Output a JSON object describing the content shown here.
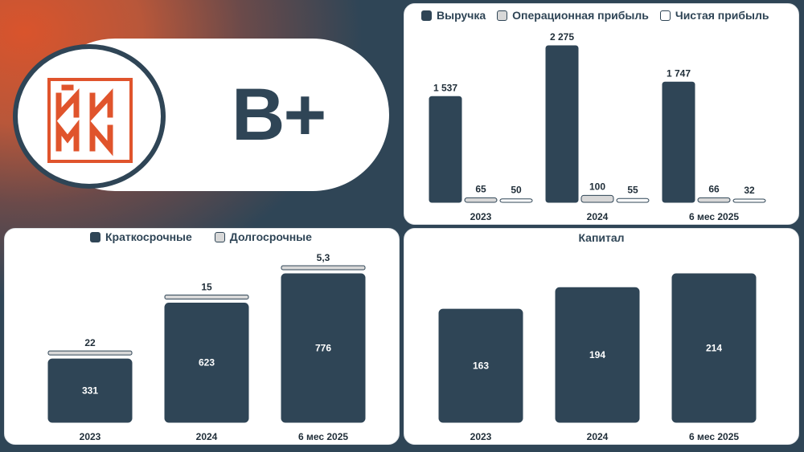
{
  "rating": "B+",
  "logo": {
    "line1": "ЙИ",
    "line2": "МИ"
  },
  "colors": {
    "dark": "#2f4556",
    "light": "#d8d8d8",
    "white": "#ffffff",
    "accent": "#e0542c"
  },
  "chart_data": [
    {
      "type": "bar",
      "categories": [
        "2023",
        "2024",
        "6 мес 2025"
      ],
      "series": [
        {
          "name": "Выручка",
          "values": [
            1537,
            2275,
            1747
          ],
          "labels": [
            "1 537",
            "2 275",
            "1 747"
          ],
          "color": "#2f4556"
        },
        {
          "name": "Операционная прибыль",
          "values": [
            65,
            100,
            66
          ],
          "labels": [
            "65",
            "100",
            "66"
          ],
          "color": "#d8d8d8"
        },
        {
          "name": "Чистая прибыль",
          "values": [
            50,
            55,
            32
          ],
          "labels": [
            "50",
            "55",
            "32"
          ],
          "color": "#ffffff"
        }
      ],
      "legend": "top"
    },
    {
      "type": "bar",
      "stacked": true,
      "categories": [
        "2023",
        "2024",
        "6 мес 2025"
      ],
      "series": [
        {
          "name": "Краткосрочные",
          "values": [
            331,
            623,
            776
          ],
          "labels": [
            "331",
            "623",
            "776"
          ],
          "color": "#2f4556"
        },
        {
          "name": "Долгосрочные",
          "values": [
            22,
            15,
            5.3
          ],
          "labels": [
            "22",
            "15",
            "5,3"
          ],
          "color": "#d8d8d8"
        }
      ],
      "legend": "top"
    },
    {
      "type": "bar",
      "title": "Капитал",
      "categories": [
        "2023",
        "2024",
        "6 мес 2025"
      ],
      "values": [
        163,
        194,
        214
      ],
      "labels": [
        "163",
        "194",
        "214"
      ]
    }
  ]
}
